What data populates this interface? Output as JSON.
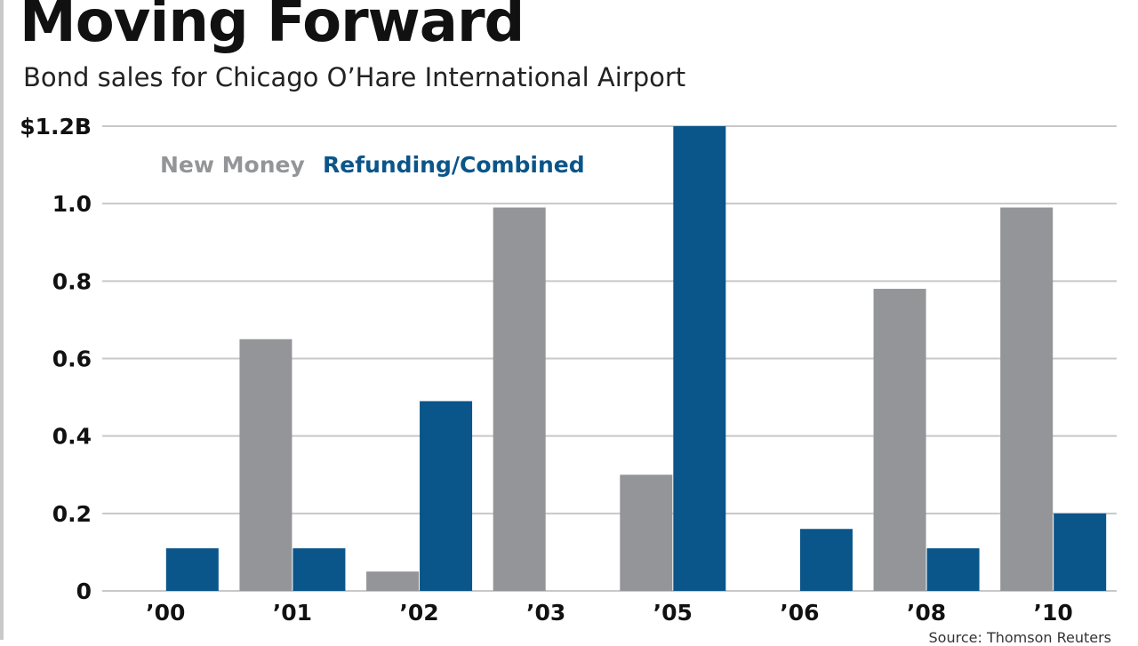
{
  "header": {
    "title": "Moving Forward",
    "subtitle": "Bond sales for Chicago O’Hare International Airport"
  },
  "source": "Source: Thomson Reuters",
  "colors": {
    "new_money": "#939598",
    "refunding": "#0a5589",
    "grid": "#c8c8c8",
    "text": "#111111"
  },
  "chart_data": {
    "type": "bar",
    "title": "Moving Forward",
    "subtitle": "Bond sales for Chicago O’Hare International Airport",
    "xlabel": "",
    "ylabel": "",
    "categories": [
      "’00",
      "’01",
      "’02",
      "’03",
      "’05",
      "’06",
      "’08",
      "’10"
    ],
    "series": [
      {
        "name": "New Money",
        "values": [
          0,
          0.65,
          0.05,
          0.99,
          0.3,
          0,
          0.78,
          0.99
        ]
      },
      {
        "name": "Refunding/Combined",
        "values": [
          0.11,
          0.11,
          0.49,
          0,
          1.2,
          0.16,
          0.11,
          0.2
        ]
      }
    ],
    "yticks": [
      0,
      0.2,
      0.4,
      0.6,
      0.8,
      1.0,
      1.2
    ],
    "ytick_labels": [
      "0",
      "0.2",
      "0.4",
      "0.6",
      "0.8",
      "1.0",
      "$1.2B"
    ],
    "ylim": [
      0,
      1.2
    ],
    "grid": true,
    "legend": "top-left, inline"
  }
}
